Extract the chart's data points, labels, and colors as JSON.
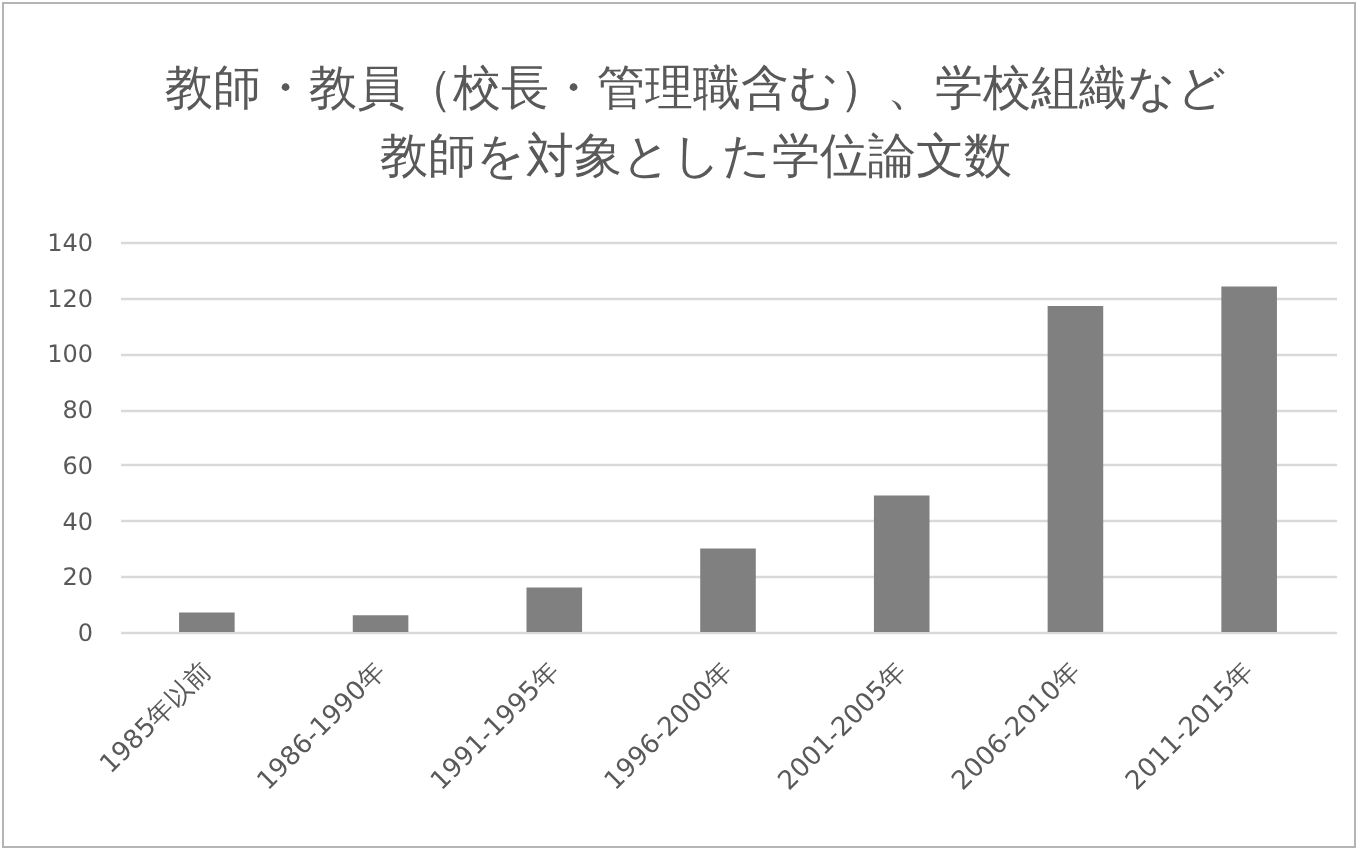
{
  "chart_data": {
    "type": "bar",
    "title": "教師・教員（校長・管理職含む）、学校組織など",
    "subtitle": "教師を対象とした学位論文数",
    "categories": [
      "1985年以前",
      "1986-1990年",
      "1991-1995年",
      "1996-2000年",
      "2001-2005年",
      "2006-2010年",
      "2011-2015年"
    ],
    "values": [
      7,
      6,
      16,
      30,
      49,
      117,
      124
    ],
    "color": "#808080",
    "ylim": [
      0,
      140
    ],
    "yticks": [
      0,
      20,
      40,
      60,
      80,
      100,
      120,
      140
    ],
    "grid": "y"
  }
}
